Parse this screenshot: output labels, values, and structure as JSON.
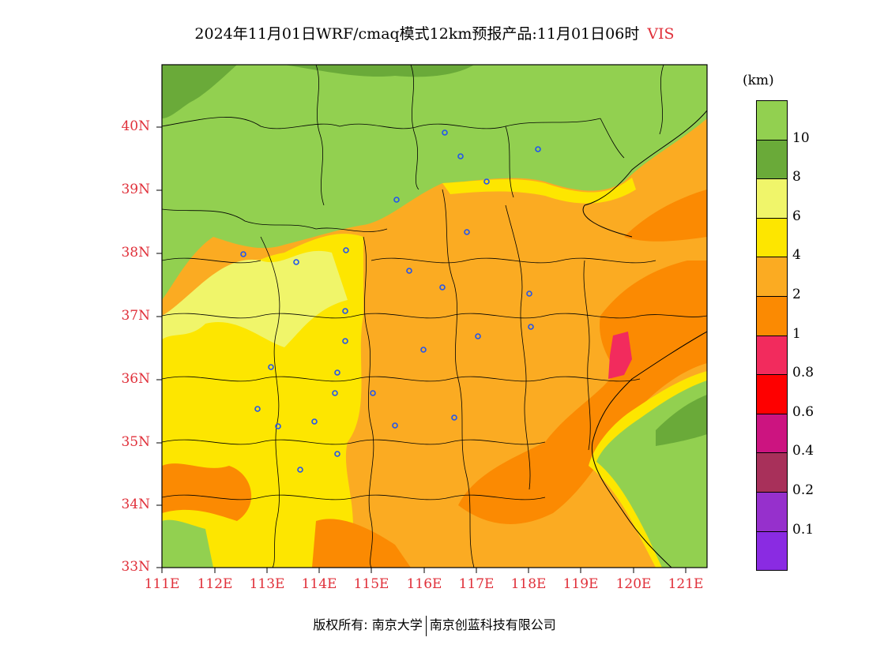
{
  "title": "2024年11月01日WRF/cmaq模式12km预报产品:11月01日06时",
  "variable": "VIS",
  "unit_label": "(km)",
  "lat_labels": [
    "40N",
    "39N",
    "38N",
    "37N",
    "36N",
    "35N",
    "34N",
    "33N"
  ],
  "lon_labels": [
    "111E",
    "112E",
    "113E",
    "114E",
    "115E",
    "116E",
    "117E",
    "118E",
    "119E",
    "120E",
    "121E"
  ],
  "colorbar": {
    "colors": [
      "#92d050",
      "#6aaa39",
      "#f0f56a",
      "#fde600",
      "#fbab22",
      "#fb8a02",
      "#f22b5d",
      "#fe0000",
      "#cc1480",
      "#a8305a",
      "#9630cc",
      "#8a2be2"
    ],
    "labels": [
      "10",
      "8",
      "6",
      "4",
      "2",
      "1",
      "0.8",
      "0.6",
      "0.4",
      "0.2",
      "0.1"
    ]
  },
  "copyright_left": "版权所有: 南京大学",
  "copyright_right": "南京创蓝科技有限公司",
  "colors": {
    "label_red": "#e0303a",
    "city_marker": "#2255ee"
  }
}
